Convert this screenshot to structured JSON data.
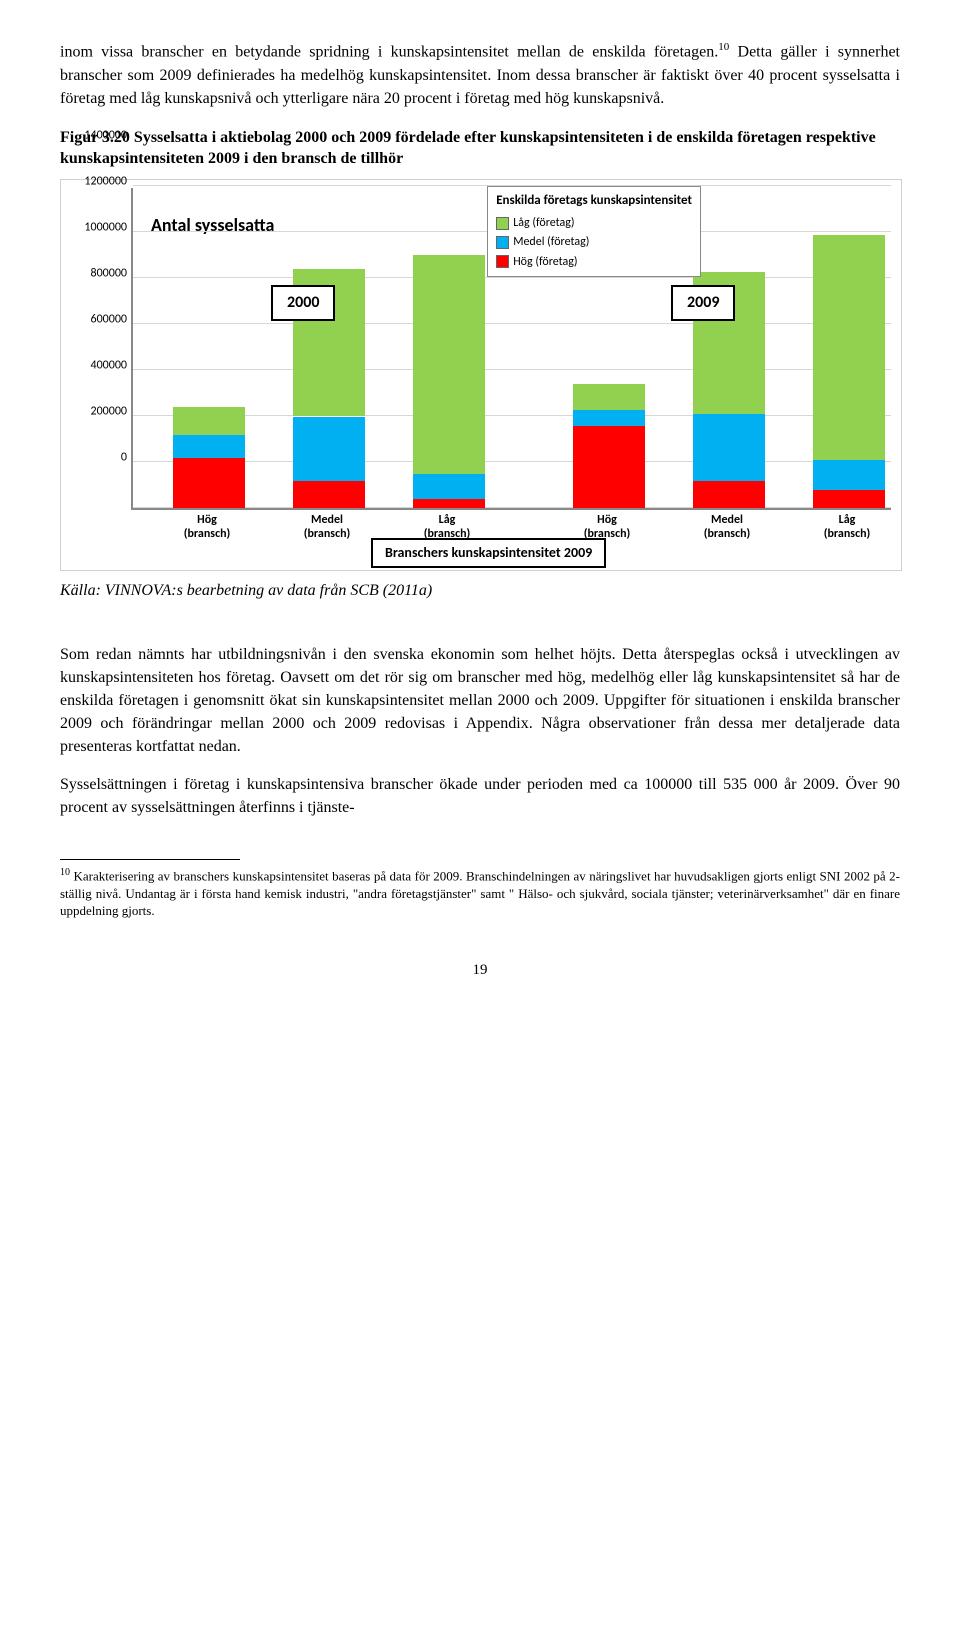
{
  "para1": "inom vissa branscher en betydande spridning i kunskapsintensitet mellan de enskilda företagen.",
  "sup1": "10",
  "para1b": " Detta gäller i synnerhet branscher som 2009 definierades ha medelhög kunskapsintensitet. Inom dessa branscher är faktiskt över 40 procent sysselsatta i företag med låg kunskapsnivå och ytterligare nära 20 procent i företag med hög kunskapsnivå.",
  "figTitle": "Figur 3.20 Sysselsatta i aktiebolag 2000 och 2009 fördelade efter kunskapsintensiteten i de enskilda företagen respektive kunskapsintensiteten 2009 i den bransch de tillhör",
  "chart": {
    "ytitle": "Antal sysselsatta",
    "ymax": 1400000,
    "yticks": [
      0,
      200000,
      400000,
      600000,
      800000,
      1000000,
      1200000,
      1400000
    ],
    "legendTitle": "Enskilda företags kunskapsintensitet",
    "legendItems": [
      {
        "label": "Låg (företag)",
        "color": "#92d050"
      },
      {
        "label": "Medel (företag)",
        "color": "#00b0f0"
      },
      {
        "label": "Hög (företag)",
        "color": "#ff0000"
      }
    ],
    "groupLabels": [
      "2000",
      "2009"
    ],
    "bottomBox": "Branschers kunskapsintensitet 2009",
    "categories": [
      "Hög\n(bransch)",
      "Medel\n(bransch)",
      "Låg\n(bransch)",
      "Hög\n(bransch)",
      "Medel\n(bransch)",
      "Låg\n(bransch)"
    ],
    "bars": [
      {
        "hog": 220000,
        "medel": 100000,
        "lag": 120000
      },
      {
        "hog": 120000,
        "medel": 280000,
        "lag": 640000
      },
      {
        "hog": 40000,
        "medel": 110000,
        "lag": 950000
      },
      {
        "hog": 360000,
        "medel": 70000,
        "lag": 110000
      },
      {
        "hog": 120000,
        "medel": 290000,
        "lag": 620000
      },
      {
        "hog": 80000,
        "medel": 130000,
        "lag": 980000
      }
    ]
  },
  "source": "Källa: VINNOVA:s bearbetning av data från SCB (2011a)",
  "para2": "Som redan nämnts har utbildningsnivån i den svenska ekonomin som helhet höjts. Detta återspeglas också i utvecklingen av kunskapsintensiteten hos företag. Oavsett om det rör sig om branscher med hög, medelhög eller låg kunskapsintensitet så har de enskilda företagen i genomsnitt ökat sin kunskapsintensitet mellan 2000 och 2009. Uppgifter för situationen i enskilda branscher 2009 och förändringar mellan 2000 och 2009 redovisas i Appendix. Några observationer från dessa mer detaljerade data presenteras kortfattat nedan.",
  "para3": "Sysselsättningen i företag i kunskapsintensiva branscher ökade under perioden med ca 100000 till 535 000 år 2009. Över 90 procent av sysselsättningen återfinns i tjänste-",
  "footnote": {
    "num": "10",
    "text": " Karakterisering av branschers kunskapsintensitet baseras på data för 2009. Branschindelningen av näringslivet har huvudsakligen gjorts enligt SNI 2002 på 2-ställig nivå. Undantag är i första hand kemisk industri, \"andra företagstjänster\" samt \" Hälso- och sjukvård, sociala tjänster; veterinärverksamhet\" där en finare uppdelning gjorts."
  },
  "pagenum": "19"
}
